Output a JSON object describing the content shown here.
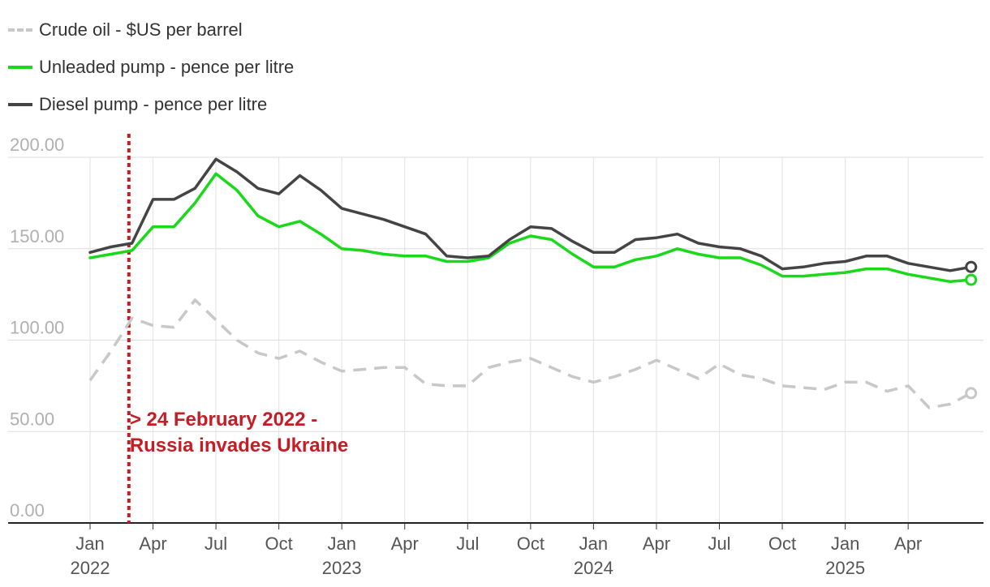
{
  "chart_data": {
    "type": "line",
    "title": "",
    "xlabel": "",
    "ylabel": "",
    "ylim": [
      0,
      200
    ],
    "y_ticks": [
      "0.00",
      "50.00",
      "100.00",
      "150.00",
      "200.00"
    ],
    "x_ticks": [
      {
        "month": "Jan",
        "year": "2022"
      },
      {
        "month": "Apr",
        "year": ""
      },
      {
        "month": "Jul",
        "year": ""
      },
      {
        "month": "Oct",
        "year": ""
      },
      {
        "month": "Jan",
        "year": "2023"
      },
      {
        "month": "Apr",
        "year": ""
      },
      {
        "month": "Jul",
        "year": ""
      },
      {
        "month": "Oct",
        "year": ""
      },
      {
        "month": "Jan",
        "year": "2024"
      },
      {
        "month": "Apr",
        "year": ""
      },
      {
        "month": "Jul",
        "year": ""
      },
      {
        "month": "Oct",
        "year": ""
      },
      {
        "month": "Jan",
        "year": "2025"
      },
      {
        "month": "Apr",
        "year": ""
      }
    ],
    "x_start": "Jan 2022",
    "x_end": "Jun 2025",
    "series": [
      {
        "name": "Crude oil - $US per barrel",
        "color": "#c8c8c8",
        "style": "dashed",
        "values": [
          78,
          94,
          112,
          108,
          107,
          122,
          111,
          100,
          93,
          90,
          94,
          88,
          83,
          84,
          85,
          85,
          76,
          75,
          75,
          85,
          88,
          90,
          85,
          80,
          77,
          80,
          84,
          89,
          84,
          79,
          87,
          81,
          79,
          75,
          74,
          73,
          77,
          77,
          72,
          75,
          63,
          65,
          71
        ]
      },
      {
        "name": "Unleaded pump - pence per litre",
        "color": "#1ad81a",
        "style": "solid",
        "values": [
          145,
          147,
          149,
          162,
          162,
          175,
          191,
          182,
          168,
          162,
          165,
          158,
          150,
          149,
          147,
          146,
          146,
          143,
          143,
          145,
          153,
          157,
          155,
          147,
          140,
          140,
          144,
          146,
          150,
          147,
          145,
          145,
          141,
          135,
          135,
          136,
          137,
          139,
          139,
          136,
          134,
          132,
          133
        ]
      },
      {
        "name": "Diesel pump - pence per litre",
        "color": "#444444",
        "style": "solid",
        "values": [
          148,
          151,
          153,
          177,
          177,
          183,
          199,
          192,
          183,
          180,
          190,
          182,
          172,
          169,
          166,
          162,
          158,
          146,
          145,
          146,
          155,
          162,
          161,
          154,
          148,
          148,
          155,
          156,
          158,
          153,
          151,
          150,
          146,
          139,
          140,
          142,
          143,
          146,
          146,
          142,
          140,
          138,
          140
        ]
      }
    ],
    "event_line": {
      "month_index": 1.85,
      "color": "#c41e24"
    },
    "annotation": [
      "> 24 February 2022 -",
      "Russia invades Ukraine"
    ]
  },
  "legend": [
    {
      "label": "Crude oil - $US per barrel",
      "color": "#c8c8c8",
      "style": "dashed"
    },
    {
      "label": "Unleaded pump - pence per litre",
      "color": "#1ad81a",
      "style": "solid"
    },
    {
      "label": "Diesel pump - pence per litre",
      "color": "#444444",
      "style": "solid"
    }
  ]
}
